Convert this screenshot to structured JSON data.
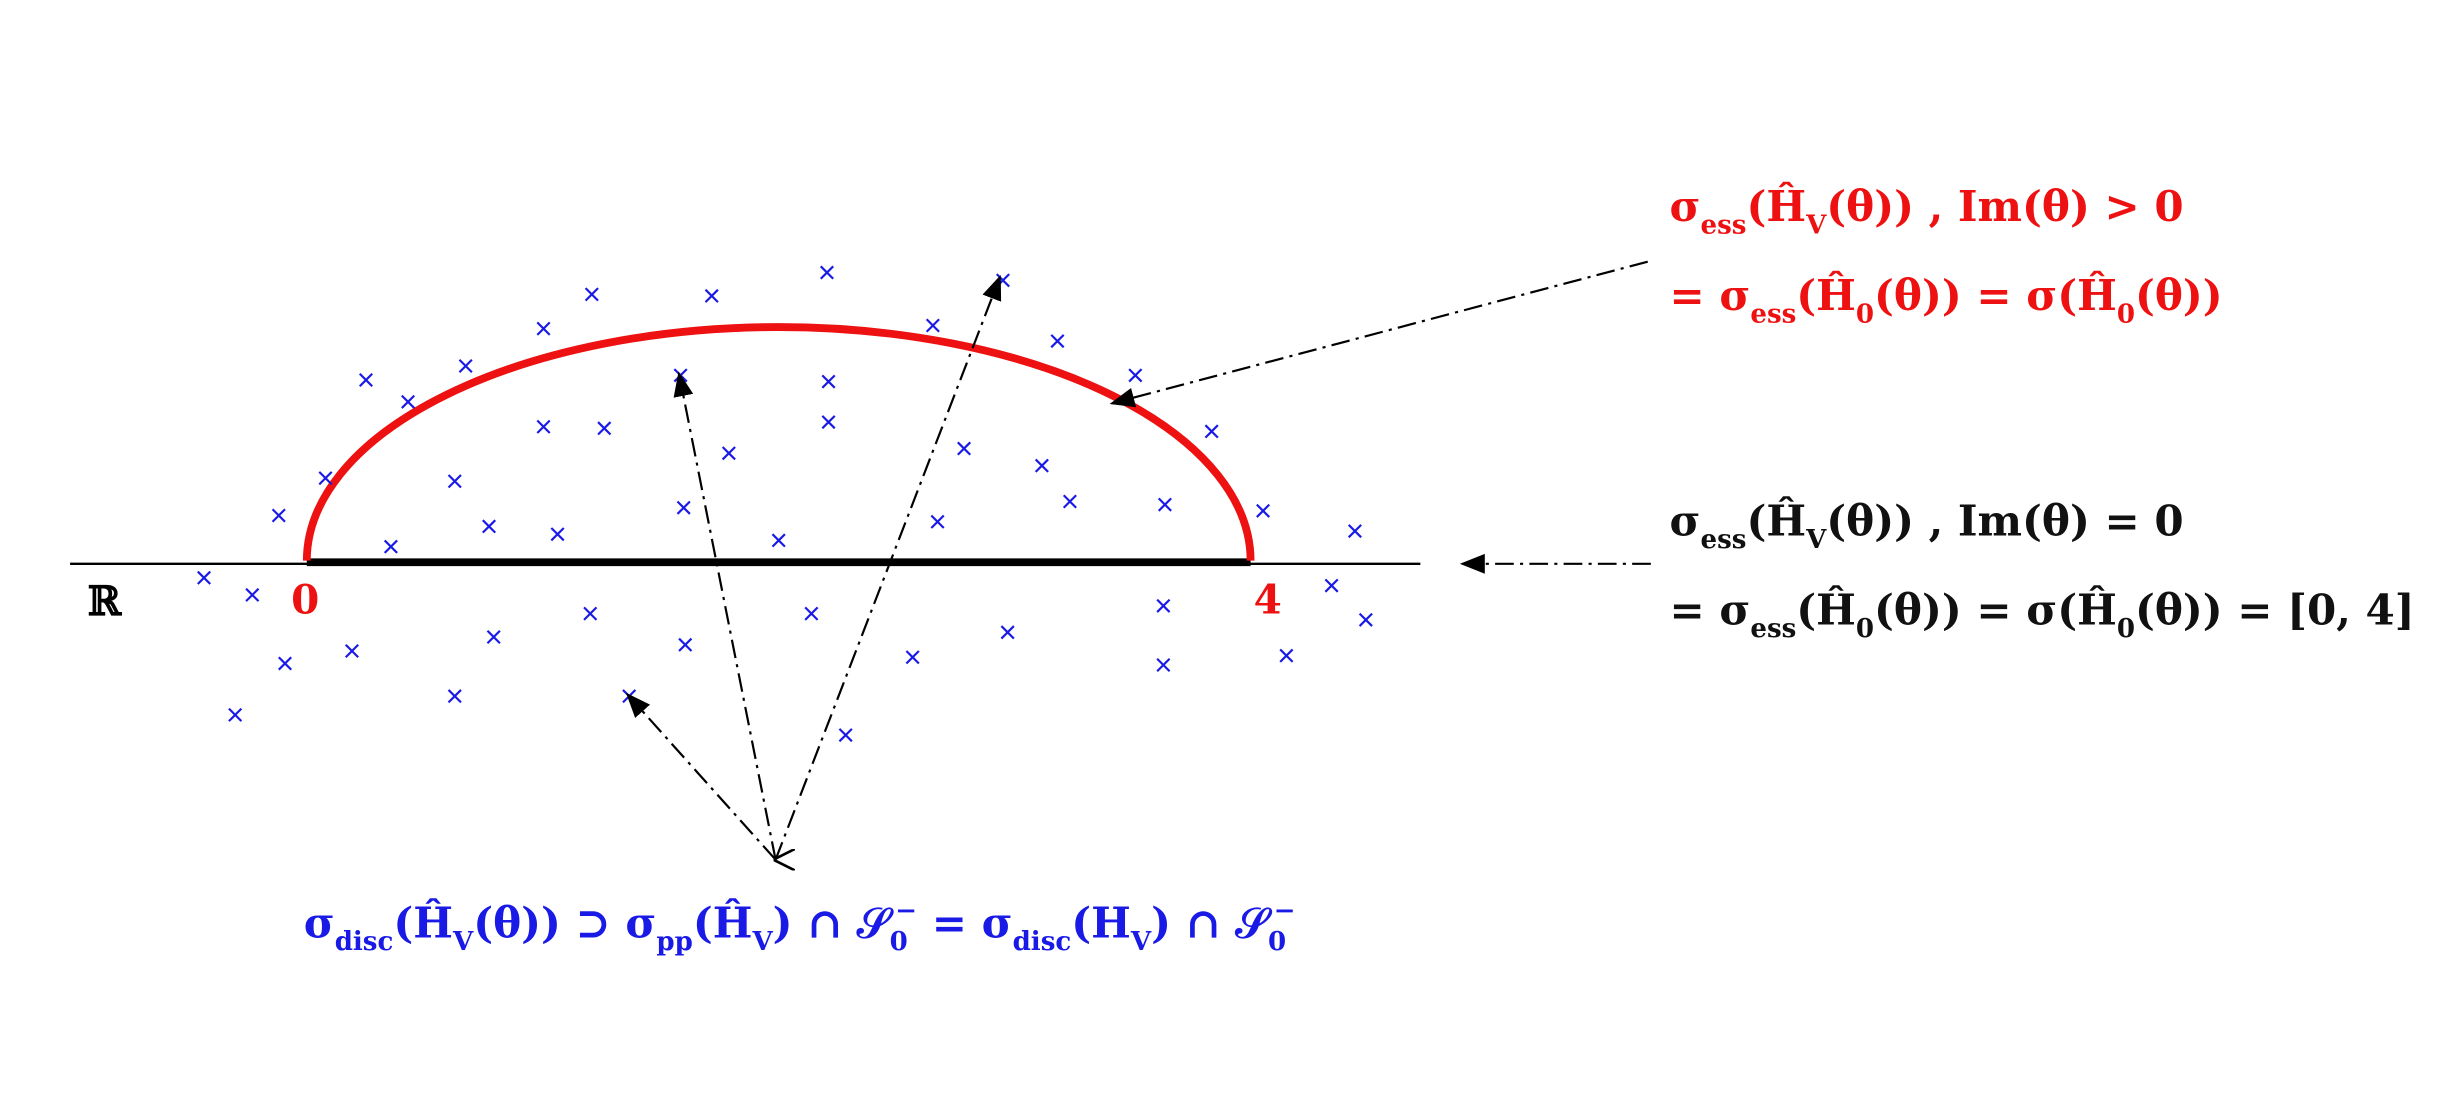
{
  "axis_label": "ℝ",
  "point_start": "0",
  "point_end": "4",
  "annotations": [
    {
      "color": "#ee1111",
      "lines": [
        [
          {
            "text": "σ"
          },
          {
            "text": "ess",
            "pos": "sub"
          },
          {
            "text": "(Ĥ"
          },
          {
            "text": "V",
            "pos": "sub"
          },
          {
            "text": "(θ)) , Im(θ) > 0"
          }
        ],
        [
          {
            "text": "= σ"
          },
          {
            "text": "ess",
            "pos": "sub"
          },
          {
            "text": "(Ĥ"
          },
          {
            "text": "0",
            "pos": "sub"
          },
          {
            "text": "(θ)) = σ(Ĥ"
          },
          {
            "text": "0",
            "pos": "sub"
          },
          {
            "text": "(θ))"
          }
        ]
      ]
    },
    {
      "color": "#111111",
      "lines": [
        [
          {
            "text": "σ"
          },
          {
            "text": "ess",
            "pos": "sub"
          },
          {
            "text": "(Ĥ"
          },
          {
            "text": "V",
            "pos": "sub"
          },
          {
            "text": "(θ)) , Im(θ) = 0"
          }
        ],
        [
          {
            "text": "= σ"
          },
          {
            "text": "ess",
            "pos": "sub"
          },
          {
            "text": "(Ĥ"
          },
          {
            "text": "0",
            "pos": "sub"
          },
          {
            "text": "(θ)) = σ(Ĥ"
          },
          {
            "text": "0",
            "pos": "sub"
          },
          {
            "text": "(θ)) = [0, 4]"
          }
        ]
      ]
    },
    {
      "color": "#1a1ae6",
      "lines": [
        [
          {
            "text": "σ"
          },
          {
            "text": "disc",
            "pos": "sub"
          },
          {
            "text": "(Ĥ"
          },
          {
            "text": "V",
            "pos": "sub"
          },
          {
            "text": "(θ)) ⊃ σ"
          },
          {
            "text": "pp",
            "pos": "sub"
          },
          {
            "text": "(Ĥ"
          },
          {
            "text": "V",
            "pos": "sub"
          },
          {
            "text": ") ∩ 𝒮"
          },
          {
            "text": "0",
            "pos": "sub"
          },
          {
            "text": "−",
            "pos": "sup"
          },
          {
            "text": " = σ"
          },
          {
            "text": "disc",
            "pos": "sub"
          },
          {
            "text": "(H"
          },
          {
            "text": "V",
            "pos": "sub"
          },
          {
            "text": ") ∩ 𝒮"
          },
          {
            "text": "0",
            "pos": "sub"
          },
          {
            "text": "−",
            "pos": "sup"
          }
        ]
      ]
    }
  ]
}
